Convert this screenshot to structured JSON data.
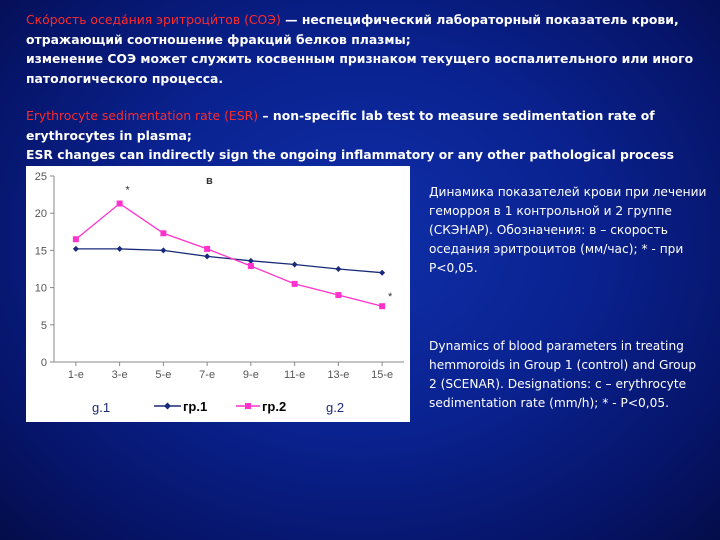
{
  "intro_ru": {
    "highlight": "Ско́рость оседа́ния эритроци́тов (СОЭ)",
    "rest": " — неспецифический лабораторный показатель крови, отражающий соотношение фракций белков плазмы;",
    "line2": " изменение СОЭ может служить косвенным признаком текущего воспалительного или иного патологического процесса."
  },
  "intro_en": {
    "highlight": "Erythrocyte sedimentation rate (ESR)",
    "rest": " – non-specific lab test to measure sedimentation rate of erythrocytes in plasma;",
    "line2": "ESR changes can indirectly sign the ongoing inflammatory or any other pathological process"
  },
  "side_ru": "Динамика показателей крови при лечении геморроя в 1 контрольной и 2 группе (СКЭНАР). Обозначения: в – скорость оседания эритроцитов (мм/час); * - при Р<0,05.",
  "side_en": "Dynamics of blood parameters in treating hemmoroids in Group 1 (control) and Group 2 (SCENAR). Designations: c – erythrocyte sedimentation rate (mm/h); * - P<0,05.",
  "chart_data": {
    "type": "line",
    "panel_label": "в",
    "categories": [
      "1-е",
      "3-е",
      "5-е",
      "7-е",
      "9-е",
      "11-е",
      "13-е",
      "15-е"
    ],
    "yticks": [
      "0",
      "5",
      "10",
      "15",
      "20",
      "25"
    ],
    "ylim": [
      0,
      25
    ],
    "grid": false,
    "series": [
      {
        "name": "гр.1",
        "color": "#1a2a7a",
        "marker": "diamond",
        "values": [
          15.2,
          15.2,
          15.0,
          14.2,
          13.6,
          13.1,
          12.5,
          12.0
        ]
      },
      {
        "name": "гр.2",
        "color": "#ff33cc",
        "marker": "square",
        "values": [
          16.5,
          21.3,
          17.3,
          15.2,
          12.9,
          10.5,
          9.0,
          7.5
        ]
      }
    ],
    "annotations": [
      {
        "text": "*",
        "category": "3-е",
        "value": 23.2
      },
      {
        "text": "*",
        "category": "15-е",
        "value": 8.9
      }
    ],
    "legend": {
      "left_label": "g.1",
      "right_label": "g.2",
      "position": "bottom"
    }
  }
}
